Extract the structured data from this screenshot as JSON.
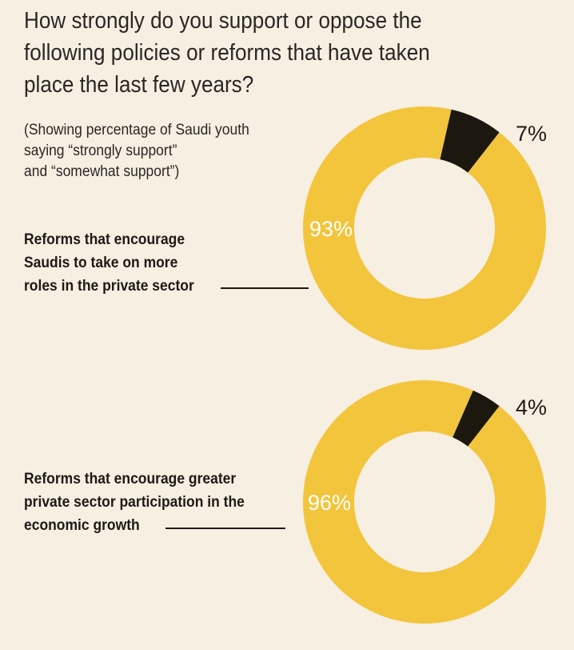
{
  "title": "How strongly do you support or oppose the\nfollowing policies or reforms that have taken\nplace the last few years?",
  "subtitle": "(Showing percentage of Saudi youth\nsaying “strongly support”\nand “somewhat support”)",
  "colors": {
    "support": "#f2c53d",
    "other": "#1c1810",
    "background": "#f8efe3"
  },
  "chart_data": [
    {
      "type": "pie",
      "category": "Reforms that encourage\nSaudis to take on more\nroles in the private sector",
      "slices": [
        {
          "label": "93%",
          "value": 93
        },
        {
          "label": "7%",
          "value": 7
        }
      ]
    },
    {
      "type": "pie",
      "category": "Reforms that encourage greater\nprivate sector participation in the\neconomic growth",
      "slices": [
        {
          "label": "96%",
          "value": 96
        },
        {
          "label": "4%",
          "value": 4
        }
      ]
    }
  ]
}
